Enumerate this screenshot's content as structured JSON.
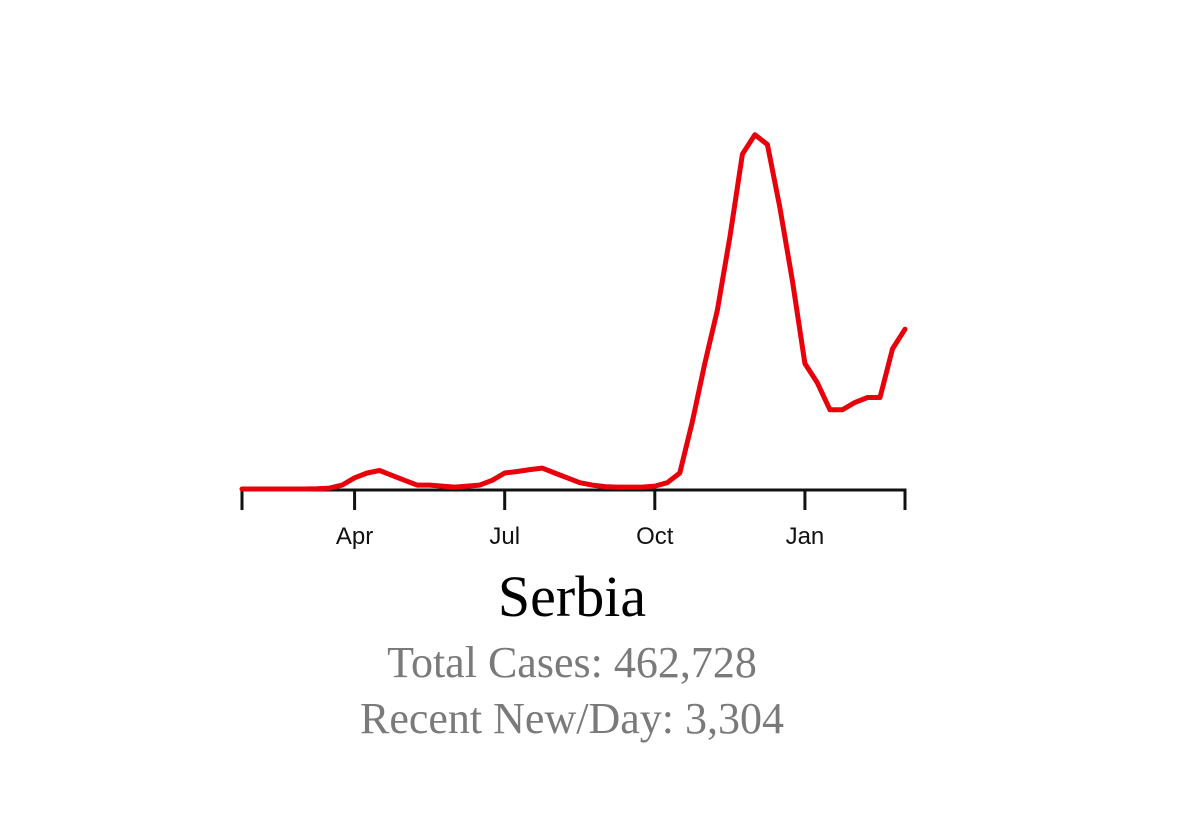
{
  "chart_data": {
    "type": "line",
    "title": "Serbia",
    "annotations": [
      "Total Cases: 462,728",
      "Recent New/Day: 3,304"
    ],
    "categories": [
      null,
      null,
      null,
      null,
      null,
      null,
      null,
      null,
      null,
      "Apr",
      null,
      null,
      null,
      null,
      null,
      null,
      null,
      null,
      null,
      null,
      null,
      "Jul",
      null,
      null,
      null,
      null,
      null,
      null,
      null,
      null,
      null,
      null,
      null,
      "Oct",
      null,
      null,
      null,
      null,
      null,
      null,
      null,
      null,
      null,
      null,
      null,
      "Jan",
      null,
      null,
      null,
      null,
      null,
      null,
      null,
      null
    ],
    "values": [
      20,
      20,
      20,
      20,
      20,
      20,
      25,
      40,
      100,
      250,
      350,
      400,
      300,
      200,
      100,
      100,
      80,
      60,
      80,
      100,
      200,
      350,
      380,
      420,
      450,
      350,
      250,
      150,
      100,
      70,
      60,
      60,
      60,
      80,
      150,
      350,
      1400,
      2600,
      3700,
      5200,
      6900,
      7300,
      7100,
      5800,
      4300,
      2600,
      2200,
      1650,
      1650,
      1800,
      1900,
      1900,
      2900,
      3304
    ],
    "color": "#e8000b",
    "ylim": [
      0,
      7500
    ]
  }
}
